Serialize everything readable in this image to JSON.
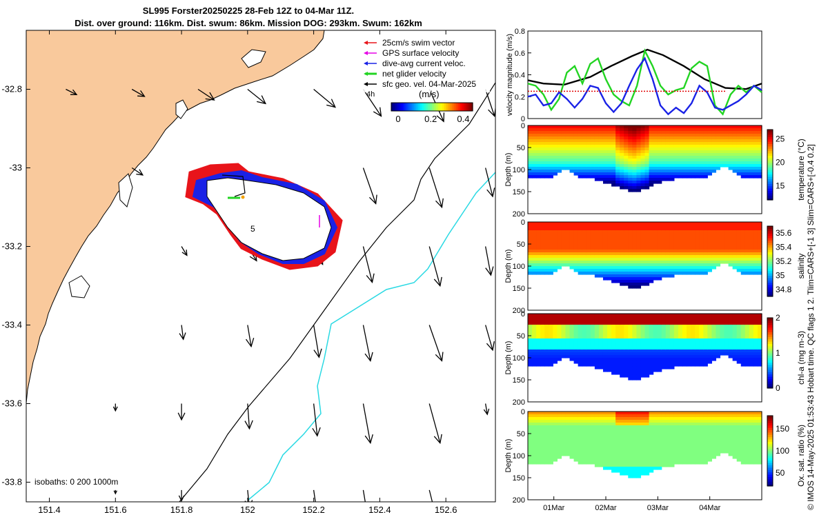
{
  "figure": {
    "title_line1": "SL995 Forster20250225 28-Feb 12Z to 04-Mar 11Z.",
    "title_line2": "Dist. over ground: 116km. Dist. swum: 86km. Mission DOG: 293km. Swum: 162km",
    "credit": "© IMOS 14-May-2025 01:53:43 Hobart time. QC flags 1  2. Tlim=CARS+[-1 3] Slim=CARS+[-0.4 0.2]"
  },
  "colors": {
    "land": "#F9C99C",
    "sea": "#FFFFFF",
    "coast": "#000000",
    "cyan_isobath": "#29D9E3",
    "swim_vector": "#E8141A",
    "gps_velocity": "#E600E6",
    "dive_avg": "#1A22E6",
    "net_glider": "#22D422",
    "geo_vel": "#000000",
    "speed_threshold": "#E00000"
  },
  "chart_data": [
    {
      "type": "map",
      "name": "map",
      "xlim": [
        151.33,
        152.75
      ],
      "ylim": [
        -33.85,
        -32.65
      ],
      "xticks": [
        151.4,
        151.6,
        151.8,
        152,
        152.2,
        152.4,
        152.6
      ],
      "xtick_labels": [
        "151.4",
        "151.6",
        "151.8",
        "152",
        "152.2",
        "152.4",
        "152.6"
      ],
      "yticks": [
        -32.8,
        -33,
        -33.2,
        -33.4,
        -33.6,
        -33.8
      ],
      "ytick_labels": [
        "-32.8",
        "-33",
        "-33.2",
        "-33.4",
        "-33.6",
        "-33.8"
      ],
      "legend": {
        "items": [
          {
            "label": "25cm/s swim vector",
            "color": "#E8141A"
          },
          {
            "label": "GPS surface velocity",
            "color": "#E600E6"
          },
          {
            "label": "dive-avg current veloc.",
            "color": "#1A22E6"
          },
          {
            "label": "net glider velocity",
            "color": "#22D422"
          },
          {
            "label": "sfc geo. vel. 04-Mar-2025",
            "color": "#000000"
          }
        ],
        "time_marker": "4h"
      },
      "colorbar": {
        "label": "(m/s)",
        "ticks": [
          0,
          0.2,
          0.4
        ],
        "tick_labels": [
          "0",
          "0.2",
          "0.4"
        ],
        "range": [
          0,
          0.5
        ]
      },
      "track_label": "5",
      "isobaths_label": "isobaths: 0   200  1000m",
      "arrows": [
        {
          "lon": 151.45,
          "lat": -32.8,
          "u": 0.06,
          "v": -0.03
        },
        {
          "lon": 151.65,
          "lat": -32.8,
          "u": 0.07,
          "v": -0.04
        },
        {
          "lon": 151.85,
          "lat": -32.8,
          "u": 0.09,
          "v": -0.06
        },
        {
          "lon": 152.0,
          "lat": -32.8,
          "u": 0.1,
          "v": -0.08
        },
        {
          "lon": 152.2,
          "lat": -32.8,
          "u": 0.12,
          "v": -0.1
        },
        {
          "lon": 152.35,
          "lat": -32.8,
          "u": 0.1,
          "v": -0.15
        },
        {
          "lon": 152.55,
          "lat": -32.8,
          "u": 0.08,
          "v": -0.18
        },
        {
          "lon": 152.72,
          "lat": -32.8,
          "u": 0.05,
          "v": -0.15
        },
        {
          "lon": 151.65,
          "lat": -33.0,
          "u": 0.06,
          "v": -0.04
        },
        {
          "lon": 152.35,
          "lat": -33.0,
          "u": 0.07,
          "v": -0.2
        },
        {
          "lon": 152.55,
          "lat": -33.0,
          "u": 0.07,
          "v": -0.22
        },
        {
          "lon": 152.72,
          "lat": -33.0,
          "u": 0.04,
          "v": -0.16
        },
        {
          "lon": 151.8,
          "lat": -33.2,
          "u": 0.03,
          "v": -0.05
        },
        {
          "lon": 152.0,
          "lat": -33.2,
          "u": 0.05,
          "v": -0.08
        },
        {
          "lon": 152.2,
          "lat": -33.2,
          "u": 0.05,
          "v": -0.1
        },
        {
          "lon": 152.35,
          "lat": -33.2,
          "u": 0.05,
          "v": -0.2
        },
        {
          "lon": 152.55,
          "lat": -33.2,
          "u": 0.06,
          "v": -0.22
        },
        {
          "lon": 152.72,
          "lat": -33.2,
          "u": 0.03,
          "v": -0.16
        },
        {
          "lon": 151.8,
          "lat": -33.4,
          "u": 0.01,
          "v": -0.08
        },
        {
          "lon": 152.0,
          "lat": -33.4,
          "u": 0.02,
          "v": -0.12
        },
        {
          "lon": 152.2,
          "lat": -33.4,
          "u": 0.03,
          "v": -0.18
        },
        {
          "lon": 152.35,
          "lat": -33.4,
          "u": 0.04,
          "v": -0.2
        },
        {
          "lon": 152.55,
          "lat": -33.4,
          "u": 0.07,
          "v": -0.2
        },
        {
          "lon": 152.72,
          "lat": -33.4,
          "u": 0.04,
          "v": -0.14
        },
        {
          "lon": 151.6,
          "lat": -33.6,
          "u": 0.0,
          "v": -0.04
        },
        {
          "lon": 151.8,
          "lat": -33.6,
          "u": 0.0,
          "v": -0.09
        },
        {
          "lon": 152.0,
          "lat": -33.6,
          "u": 0.01,
          "v": -0.14
        },
        {
          "lon": 152.2,
          "lat": -33.6,
          "u": 0.02,
          "v": -0.18
        },
        {
          "lon": 152.35,
          "lat": -33.6,
          "u": 0.04,
          "v": -0.22
        },
        {
          "lon": 152.55,
          "lat": -33.6,
          "u": 0.06,
          "v": -0.22
        },
        {
          "lon": 152.72,
          "lat": -33.6,
          "u": 0.01,
          "v": -0.06
        },
        {
          "lon": 151.6,
          "lat": -33.82,
          "u": 0.0,
          "v": -0.02
        },
        {
          "lon": 151.8,
          "lat": -33.82,
          "u": 0.0,
          "v": -0.06
        },
        {
          "lon": 152.0,
          "lat": -33.82,
          "u": 0.01,
          "v": -0.1
        },
        {
          "lon": 152.2,
          "lat": -33.82,
          "u": 0.02,
          "v": -0.14
        },
        {
          "lon": 152.35,
          "lat": -33.82,
          "u": 0.02,
          "v": -0.12
        },
        {
          "lon": 152.55,
          "lat": -33.82,
          "u": 0.03,
          "v": -0.12
        }
      ]
    },
    {
      "type": "line",
      "name": "velocity",
      "ylabel": "velocity magnitude (m/s)",
      "xlim": [
        0,
        4.5
      ],
      "ylim": [
        0,
        0.8
      ],
      "yticks": [
        0,
        0.2,
        0.4,
        0.6,
        0.8
      ],
      "ytick_labels": [
        "0",
        "0.2",
        "0.4",
        "0.6",
        "0.8"
      ],
      "series": [
        {
          "name": "sfc geo. vel.",
          "color": "#000000",
          "x": [
            0,
            0.3,
            0.7,
            1.2,
            1.6,
            2.0,
            2.3,
            2.6,
            3.0,
            3.4,
            3.8,
            4.2,
            4.5
          ],
          "y": [
            0.35,
            0.32,
            0.31,
            0.38,
            0.48,
            0.57,
            0.63,
            0.58,
            0.48,
            0.36,
            0.28,
            0.27,
            0.32
          ]
        },
        {
          "name": "net glider",
          "color": "#22D422",
          "x": [
            0,
            0.15,
            0.3,
            0.45,
            0.6,
            0.75,
            0.9,
            1.05,
            1.2,
            1.35,
            1.5,
            1.65,
            1.8,
            1.95,
            2.1,
            2.25,
            2.4,
            2.55,
            2.7,
            2.85,
            3.0,
            3.15,
            3.3,
            3.45,
            3.6,
            3.75,
            3.9,
            4.05,
            4.2,
            4.35,
            4.5
          ],
          "y": [
            0.32,
            0.3,
            0.22,
            0.08,
            0.18,
            0.42,
            0.48,
            0.32,
            0.5,
            0.55,
            0.36,
            0.22,
            0.16,
            0.12,
            0.3,
            0.62,
            0.48,
            0.3,
            0.22,
            0.26,
            0.28,
            0.46,
            0.52,
            0.48,
            0.12,
            0.04,
            0.22,
            0.3,
            0.24,
            0.3,
            0.24
          ]
        },
        {
          "name": "dive-avg",
          "color": "#1A22E6",
          "x": [
            0,
            0.15,
            0.3,
            0.45,
            0.6,
            0.75,
            0.9,
            1.05,
            1.2,
            1.35,
            1.5,
            1.65,
            1.8,
            1.95,
            2.1,
            2.25,
            2.4,
            2.55,
            2.7,
            2.85,
            3.0,
            3.15,
            3.3,
            3.45,
            3.6,
            3.75,
            3.9,
            4.05,
            4.2,
            4.35,
            4.5
          ],
          "y": [
            0.2,
            0.22,
            0.12,
            0.14,
            0.24,
            0.18,
            0.1,
            0.18,
            0.3,
            0.28,
            0.14,
            0.06,
            0.14,
            0.3,
            0.45,
            0.55,
            0.36,
            0.12,
            0.04,
            0.1,
            0.05,
            0.14,
            0.3,
            0.24,
            0.1,
            0.08,
            0.12,
            0.16,
            0.22,
            0.3,
            0.26
          ]
        },
        {
          "name": "threshold",
          "color": "#E00000",
          "x": [
            0,
            3.8
          ],
          "y": [
            0.25,
            0.25
          ],
          "dashed": true
        }
      ]
    },
    {
      "type": "heatmap",
      "name": "temperature",
      "ylabel": "Depth (m)",
      "cbar_label": "temperature (°C)",
      "cbar_ticks": [
        15,
        20,
        25
      ],
      "cbar_range": [
        12,
        27
      ],
      "ylim": [
        0,
        200
      ],
      "yticks": [
        0,
        50,
        100,
        150,
        200
      ],
      "ytick_labels": [
        "0",
        "50",
        "100",
        "150",
        "200"
      ],
      "profile": "temp"
    },
    {
      "type": "heatmap",
      "name": "salinity",
      "ylabel": "Depth (m)",
      "cbar_label": "salinity",
      "cbar_ticks": [
        34.8,
        35,
        35.2,
        35.4,
        35.6
      ],
      "cbar_range": [
        34.7,
        35.7
      ],
      "ylim": [
        0,
        200
      ],
      "yticks": [
        0,
        50,
        100,
        150,
        200
      ],
      "ytick_labels": [
        "0",
        "50",
        "100",
        "150",
        "200"
      ],
      "profile": "sal"
    },
    {
      "type": "heatmap",
      "name": "chla",
      "ylabel": "Depth (m)",
      "cbar_label": "chl-a (mg m-3)",
      "cbar_ticks": [
        0,
        1,
        2
      ],
      "cbar_range": [
        0,
        2
      ],
      "ylim": [
        0,
        200
      ],
      "yticks": [
        0,
        50,
        100,
        150,
        200
      ],
      "ytick_labels": [
        "0",
        "50",
        "100",
        "150",
        "200"
      ],
      "profile": "chl"
    },
    {
      "type": "heatmap",
      "name": "oxygen",
      "ylabel": "Depth (m)",
      "cbar_label": "Ox. sat. ratio (%)",
      "cbar_ticks": [
        50,
        100,
        150
      ],
      "cbar_range": [
        20,
        180
      ],
      "ylim": [
        0,
        200
      ],
      "yticks": [
        0,
        50,
        100,
        150,
        200
      ],
      "ytick_labels": [
        "0",
        "50",
        "100",
        "150",
        "200"
      ],
      "xtick_labels": [
        "01Mar",
        "02Mar",
        "03Mar",
        "04Mar"
      ],
      "xticks": [
        0.5,
        1.5,
        2.5,
        3.5
      ],
      "xlim": [
        0,
        4.5
      ],
      "profile": "oxy"
    }
  ]
}
